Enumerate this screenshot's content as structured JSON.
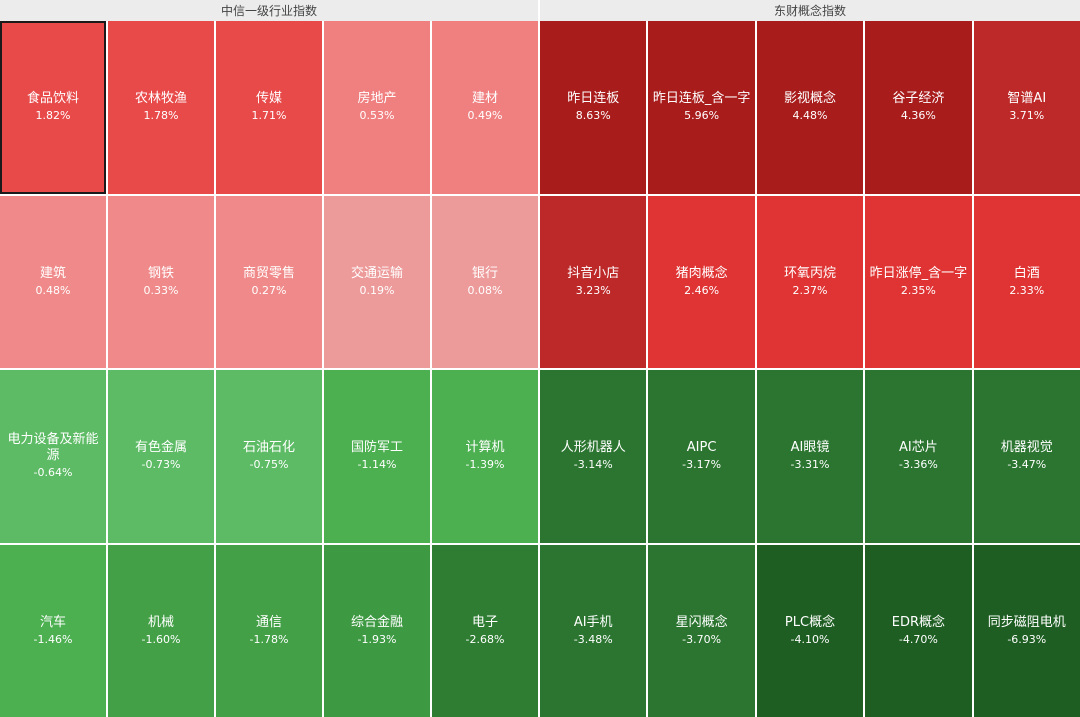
{
  "chart_data": [
    {
      "type": "heatmap",
      "title": "中信一级行业指数",
      "selected": "食品饮料",
      "cells": [
        {
          "name": "食品饮料",
          "value": "1.82%",
          "color": "#e84a4a"
        },
        {
          "name": "农林牧渔",
          "value": "1.78%",
          "color": "#e84a4a"
        },
        {
          "name": "传媒",
          "value": "1.71%",
          "color": "#e84a4a"
        },
        {
          "name": "房地产",
          "value": "0.53%",
          "color": "#f08080"
        },
        {
          "name": "建材",
          "value": "0.49%",
          "color": "#f08080"
        },
        {
          "name": "建筑",
          "value": "0.48%",
          "color": "#f08a8a"
        },
        {
          "name": "钢铁",
          "value": "0.33%",
          "color": "#f08a8a"
        },
        {
          "name": "商贸零售",
          "value": "0.27%",
          "color": "#f08a8a"
        },
        {
          "name": "交通运输",
          "value": "0.19%",
          "color": "#ed9a9a"
        },
        {
          "name": "银行",
          "value": "0.08%",
          "color": "#ed9a9a"
        },
        {
          "name": "电力设备及新能源",
          "value": "-0.64%",
          "color": "#5cbb64"
        },
        {
          "name": "有色金属",
          "value": "-0.73%",
          "color": "#5cbb64"
        },
        {
          "name": "石油石化",
          "value": "-0.75%",
          "color": "#5cbb64"
        },
        {
          "name": "国防军工",
          "value": "-1.14%",
          "color": "#4caf50"
        },
        {
          "name": "计算机",
          "value": "-1.39%",
          "color": "#4caf50"
        },
        {
          "name": "汽车",
          "value": "-1.46%",
          "color": "#4caf50"
        },
        {
          "name": "机械",
          "value": "-1.60%",
          "color": "#43a047"
        },
        {
          "name": "通信",
          "value": "-1.78%",
          "color": "#43a047"
        },
        {
          "name": "综合金融",
          "value": "-1.93%",
          "color": "#3d9a42"
        },
        {
          "name": "电子",
          "value": "-2.68%",
          "color": "#2e7d32"
        }
      ]
    },
    {
      "type": "heatmap",
      "title": "东财概念指数",
      "cells": [
        {
          "name": "昨日连板",
          "value": "8.63%",
          "color": "#a81c1c"
        },
        {
          "name": "昨日连板_含一字",
          "value": "5.96%",
          "color": "#a81c1c"
        },
        {
          "name": "影视概念",
          "value": "4.48%",
          "color": "#a81c1c"
        },
        {
          "name": "谷子经济",
          "value": "4.36%",
          "color": "#a81c1c"
        },
        {
          "name": "智谱AI",
          "value": "3.71%",
          "color": "#bd2828"
        },
        {
          "name": "抖音小店",
          "value": "3.23%",
          "color": "#bd2828"
        },
        {
          "name": "猪肉概念",
          "value": "2.46%",
          "color": "#e03434"
        },
        {
          "name": "环氧丙烷",
          "value": "2.37%",
          "color": "#e03434"
        },
        {
          "name": "昨日涨停_含一字",
          "value": "2.35%",
          "color": "#e03434"
        },
        {
          "name": "白酒",
          "value": "2.33%",
          "color": "#e03434"
        },
        {
          "name": "人形机器人",
          "value": "-3.14%",
          "color": "#2b7530"
        },
        {
          "name": "AIPC",
          "value": "-3.17%",
          "color": "#2b7530"
        },
        {
          "name": "AI眼镜",
          "value": "-3.31%",
          "color": "#2b7530"
        },
        {
          "name": "AI芯片",
          "value": "-3.36%",
          "color": "#2b7530"
        },
        {
          "name": "机器视觉",
          "value": "-3.47%",
          "color": "#2b7530"
        },
        {
          "name": "AI手机",
          "value": "-3.48%",
          "color": "#2b7530"
        },
        {
          "name": "星闪概念",
          "value": "-3.70%",
          "color": "#2b7530"
        },
        {
          "name": "PLC概念",
          "value": "-4.10%",
          "color": "#1e5e22"
        },
        {
          "name": "EDR概念",
          "value": "-4.70%",
          "color": "#1e5e22"
        },
        {
          "name": "同步磁阻电机",
          "value": "-6.93%",
          "color": "#1e5e22"
        }
      ]
    }
  ]
}
